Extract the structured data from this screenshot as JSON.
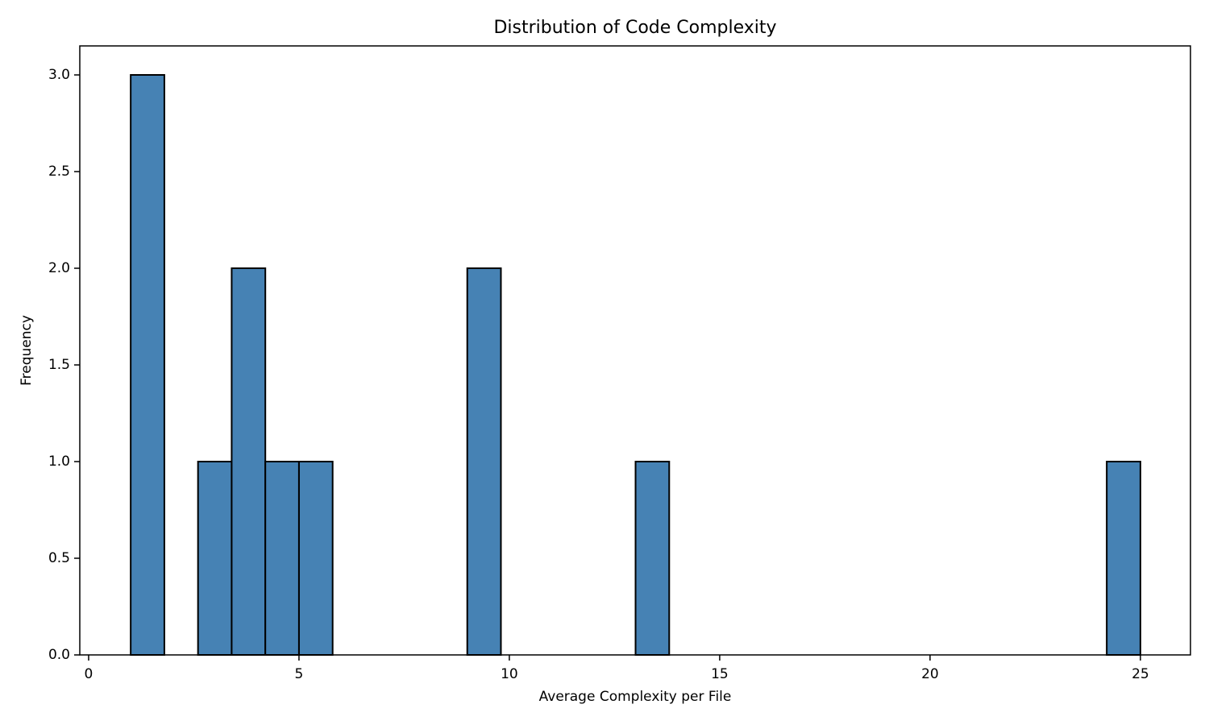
{
  "chart_data": {
    "type": "histogram",
    "title": "Distribution of Code Complexity",
    "x_label": "Average Complexity per File",
    "y_label": "Frequency",
    "bins": [
      1,
      1.8,
      2.6,
      3.4,
      4.2,
      5,
      5.8,
      6.6,
      7.4,
      8.2,
      9,
      9.8,
      10.6,
      11.4,
      12.2,
      13,
      13.8,
      14.6,
      15.4,
      16.2,
      17,
      17.8,
      18.6,
      19.4,
      20.2,
      21,
      21.8,
      22.6,
      23.4,
      24.2,
      25
    ],
    "counts": [
      3,
      0,
      1,
      2,
      1,
      1,
      0,
      0,
      0,
      0,
      2,
      0,
      0,
      0,
      0,
      1,
      0,
      0,
      0,
      0,
      0,
      0,
      0,
      0,
      0,
      0,
      0,
      0,
      0,
      1
    ],
    "color": "#4682b4",
    "edge_color": "#000000",
    "xlim": [
      -0.21,
      26.19
    ],
    "ylim": [
      0,
      3.15
    ],
    "xticks": [
      0,
      5,
      10,
      15,
      20,
      25
    ],
    "yticks": [
      {
        "value": 0,
        "label": "0.0"
      },
      {
        "value": 0.5,
        "label": "0.5"
      },
      {
        "value": 1,
        "label": "1.0"
      },
      {
        "value": 1.5,
        "label": "1.5"
      },
      {
        "value": 2,
        "label": "2.0"
      },
      {
        "value": 2.5,
        "label": "2.5"
      },
      {
        "value": 3,
        "label": "3.0"
      }
    ]
  }
}
